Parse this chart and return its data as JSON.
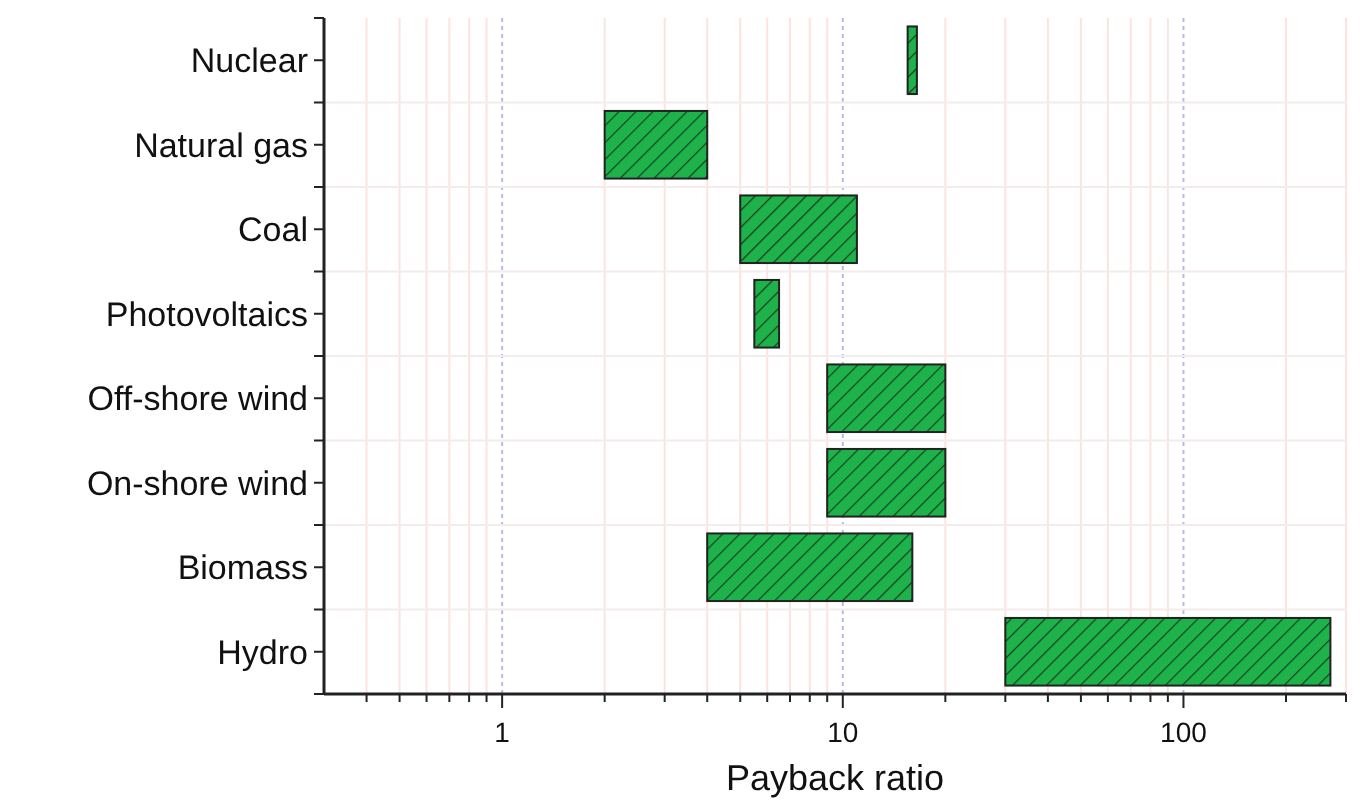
{
  "chart_data": {
    "type": "bar",
    "orientation": "horizontal",
    "xlabel": "Payback ratio",
    "categories": [
      "Nuclear",
      "Natural gas",
      "Coal",
      "Photovoltaics",
      "Off-shore wind",
      "On-shore wind",
      "Biomass",
      "Hydro"
    ],
    "base": [
      15.5,
      2,
      5,
      5.5,
      9,
      9,
      4,
      30
    ],
    "values": [
      1,
      2,
      6,
      1,
      11,
      11,
      12,
      240
    ],
    "color": "#1db34a",
    "log": "x",
    "grid": true,
    "xlim": [
      0.3,
      300
    ],
    "xticks": [
      {
        "value": 0.4,
        "label": null
      },
      {
        "value": 0.5,
        "label": null
      },
      {
        "value": 0.6,
        "label": null
      },
      {
        "value": 0.7,
        "label": null
      },
      {
        "value": 0.8,
        "label": null
      },
      {
        "value": 0.9,
        "label": null
      },
      1,
      {
        "value": 2,
        "label": null
      },
      {
        "value": 3,
        "label": null
      },
      {
        "value": 4,
        "label": null
      },
      {
        "value": 5,
        "label": null
      },
      {
        "value": 6,
        "label": null
      },
      {
        "value": 7,
        "label": null
      },
      {
        "value": 8,
        "label": null
      },
      {
        "value": 9,
        "label": null
      },
      10,
      {
        "value": 20,
        "label": null
      },
      {
        "value": 30,
        "label": null
      },
      {
        "value": 40,
        "label": null
      },
      {
        "value": 50,
        "label": null
      },
      {
        "value": 60,
        "label": null
      },
      {
        "value": 70,
        "label": null
      },
      {
        "value": 80,
        "label": null
      },
      {
        "value": 90,
        "label": null
      },
      100,
      {
        "value": 200,
        "label": null
      },
      {
        "value": 300,
        "label": null
      }
    ]
  }
}
